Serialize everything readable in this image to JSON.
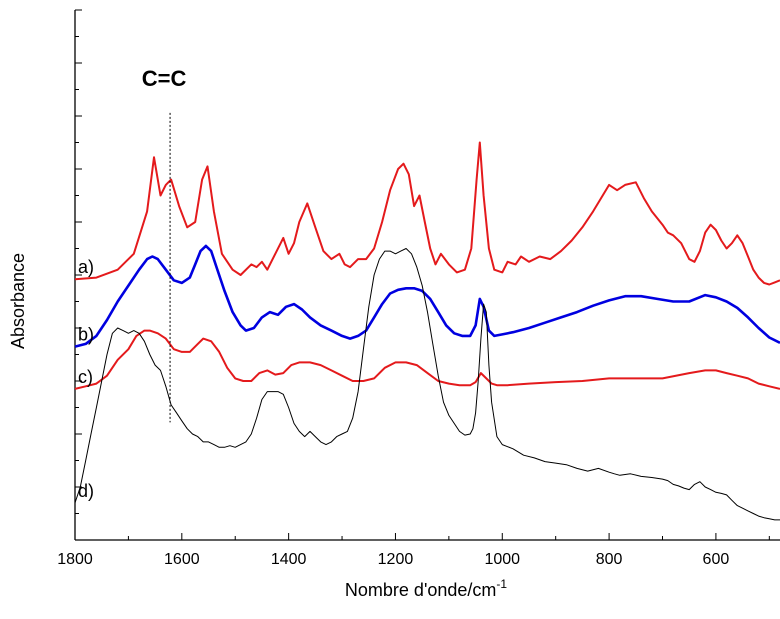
{
  "chart_data": {
    "type": "line",
    "title": "",
    "xlabel": "Nombre d'onde/cm",
    "xlabel_superscript": "-1",
    "ylabel": "Absorbance",
    "xlim": [
      1800,
      480
    ],
    "x_reversed": true,
    "ylim": [
      0,
      10
    ],
    "y_tick_labels_shown": false,
    "x_ticks": [
      1800,
      1600,
      1400,
      1200,
      1000,
      800,
      600
    ],
    "grid": false,
    "legend": "none",
    "annotations": [
      {
        "text": "C=C",
        "x": 1622,
        "y_top": 8.06,
        "y_bottom": 2.22,
        "style": "dotted-vertical-line"
      }
    ],
    "series": [
      {
        "name": "a)",
        "color": "#e41a1c",
        "x": [
          1800,
          1760,
          1720,
          1690,
          1665,
          1652,
          1640,
          1630,
          1620,
          1605,
          1590,
          1575,
          1562,
          1552,
          1540,
          1525,
          1505,
          1490,
          1470,
          1460,
          1450,
          1440,
          1425,
          1410,
          1400,
          1390,
          1380,
          1365,
          1350,
          1335,
          1320,
          1305,
          1295,
          1285,
          1270,
          1255,
          1240,
          1225,
          1210,
          1195,
          1185,
          1175,
          1165,
          1155,
          1145,
          1135,
          1125,
          1115,
          1100,
          1085,
          1070,
          1058,
          1048,
          1042,
          1035,
          1025,
          1015,
          1000,
          990,
          975,
          965,
          950,
          930,
          910,
          890,
          870,
          850,
          830,
          815,
          800,
          785,
          770,
          750,
          735,
          720,
          700,
          690,
          680,
          665,
          650,
          640,
          630,
          620,
          610,
          600,
          590,
          580,
          570,
          560,
          550,
          540,
          530,
          520,
          510,
          500,
          490,
          480
        ],
        "values": [
          4.92,
          4.95,
          5.1,
          5.4,
          6.2,
          7.22,
          6.5,
          6.7,
          6.8,
          6.3,
          5.9,
          6.0,
          6.8,
          7.05,
          6.2,
          5.4,
          5.1,
          5.0,
          5.2,
          5.15,
          5.25,
          5.1,
          5.4,
          5.7,
          5.4,
          5.6,
          6.0,
          6.35,
          5.9,
          5.45,
          5.3,
          5.4,
          5.2,
          5.15,
          5.3,
          5.3,
          5.5,
          6.0,
          6.6,
          7.0,
          7.1,
          6.9,
          6.3,
          6.5,
          6.0,
          5.5,
          5.2,
          5.4,
          5.2,
          5.05,
          5.1,
          5.5,
          6.8,
          7.5,
          6.5,
          5.5,
          5.1,
          5.05,
          5.25,
          5.2,
          5.35,
          5.25,
          5.35,
          5.3,
          5.45,
          5.65,
          5.9,
          6.2,
          6.45,
          6.7,
          6.6,
          6.7,
          6.75,
          6.45,
          6.2,
          5.95,
          5.8,
          5.75,
          5.6,
          5.3,
          5.25,
          5.45,
          5.8,
          5.95,
          5.85,
          5.65,
          5.5,
          5.6,
          5.75,
          5.6,
          5.35,
          5.1,
          4.95,
          4.85,
          4.82,
          4.86,
          4.9
        ]
      },
      {
        "name": "b)",
        "color": "#0000e0",
        "x": [
          1800,
          1780,
          1760,
          1740,
          1720,
          1700,
          1680,
          1665,
          1655,
          1645,
          1630,
          1615,
          1600,
          1585,
          1575,
          1565,
          1555,
          1545,
          1535,
          1520,
          1505,
          1490,
          1480,
          1465,
          1450,
          1435,
          1420,
          1405,
          1390,
          1375,
          1360,
          1340,
          1320,
          1300,
          1285,
          1270,
          1255,
          1240,
          1225,
          1210,
          1195,
          1180,
          1165,
          1150,
          1135,
          1120,
          1105,
          1090,
          1075,
          1060,
          1050,
          1042,
          1035,
          1025,
          1015,
          1000,
          980,
          950,
          920,
          890,
          860,
          830,
          800,
          770,
          740,
          710,
          680,
          650,
          620,
          600,
          580,
          560,
          540,
          520,
          500,
          480
        ],
        "values": [
          3.65,
          3.7,
          3.85,
          4.15,
          4.5,
          4.8,
          5.1,
          5.3,
          5.35,
          5.3,
          5.1,
          4.9,
          4.85,
          4.95,
          5.2,
          5.45,
          5.55,
          5.45,
          5.15,
          4.7,
          4.3,
          4.05,
          3.95,
          4.0,
          4.2,
          4.3,
          4.25,
          4.4,
          4.45,
          4.35,
          4.2,
          4.05,
          3.95,
          3.85,
          3.8,
          3.85,
          3.95,
          4.2,
          4.45,
          4.65,
          4.72,
          4.75,
          4.75,
          4.7,
          4.55,
          4.3,
          4.05,
          3.9,
          3.85,
          3.85,
          4.05,
          4.55,
          4.4,
          3.95,
          3.85,
          3.88,
          3.92,
          4.0,
          4.1,
          4.2,
          4.3,
          4.42,
          4.52,
          4.6,
          4.6,
          4.55,
          4.5,
          4.5,
          4.62,
          4.58,
          4.5,
          4.38,
          4.2,
          4.0,
          3.82,
          3.72
        ]
      },
      {
        "name": "c)",
        "color": "#e41a1c",
        "x": [
          1800,
          1780,
          1760,
          1740,
          1720,
          1700,
          1685,
          1670,
          1660,
          1645,
          1630,
          1615,
          1600,
          1585,
          1570,
          1560,
          1545,
          1530,
          1515,
          1500,
          1485,
          1470,
          1455,
          1440,
          1425,
          1410,
          1395,
          1380,
          1360,
          1340,
          1320,
          1300,
          1280,
          1260,
          1240,
          1220,
          1200,
          1180,
          1160,
          1140,
          1120,
          1100,
          1080,
          1060,
          1050,
          1040,
          1030,
          1020,
          1010,
          990,
          950,
          900,
          850,
          800,
          750,
          700,
          650,
          620,
          600,
          580,
          560,
          540,
          520,
          500,
          480
        ],
        "values": [
          2.85,
          2.9,
          2.95,
          3.1,
          3.4,
          3.6,
          3.85,
          3.95,
          3.95,
          3.9,
          3.8,
          3.6,
          3.55,
          3.55,
          3.7,
          3.8,
          3.75,
          3.55,
          3.25,
          3.05,
          3.0,
          3.0,
          3.15,
          3.2,
          3.12,
          3.15,
          3.3,
          3.35,
          3.35,
          3.3,
          3.2,
          3.1,
          3.0,
          3.0,
          3.05,
          3.25,
          3.35,
          3.35,
          3.3,
          3.15,
          3.0,
          2.95,
          2.92,
          2.92,
          2.98,
          3.15,
          3.05,
          2.95,
          2.92,
          2.92,
          2.95,
          2.98,
          3.0,
          3.05,
          3.05,
          3.05,
          3.15,
          3.2,
          3.2,
          3.15,
          3.1,
          3.05,
          2.95,
          2.9,
          2.85
        ]
      },
      {
        "name": "d)",
        "color": "#000000",
        "x": [
          1800,
          1790,
          1780,
          1770,
          1760,
          1750,
          1740,
          1730,
          1720,
          1710,
          1700,
          1690,
          1680,
          1670,
          1660,
          1650,
          1640,
          1630,
          1620,
          1610,
          1600,
          1590,
          1580,
          1570,
          1560,
          1550,
          1540,
          1530,
          1520,
          1510,
          1500,
          1490,
          1480,
          1470,
          1460,
          1450,
          1440,
          1430,
          1420,
          1410,
          1400,
          1390,
          1380,
          1370,
          1360,
          1350,
          1340,
          1330,
          1320,
          1310,
          1300,
          1290,
          1280,
          1270,
          1260,
          1250,
          1240,
          1230,
          1220,
          1210,
          1200,
          1190,
          1180,
          1170,
          1160,
          1150,
          1140,
          1130,
          1120,
          1110,
          1100,
          1090,
          1080,
          1070,
          1060,
          1055,
          1050,
          1045,
          1040,
          1035,
          1030,
          1025,
          1020,
          1010,
          1000,
          980,
          960,
          940,
          920,
          900,
          880,
          860,
          840,
          820,
          800,
          790,
          780,
          760,
          740,
          720,
          700,
          690,
          680,
          670,
          660,
          650,
          640,
          630,
          620,
          610,
          600,
          590,
          580,
          570,
          560,
          550,
          540,
          530,
          520,
          510,
          500,
          490,
          480
        ],
        "values": [
          0.7,
          1.0,
          1.5,
          2.0,
          2.5,
          3.0,
          3.5,
          3.9,
          4.0,
          3.95,
          3.9,
          3.95,
          3.9,
          3.75,
          3.5,
          3.3,
          3.2,
          2.9,
          2.55,
          2.4,
          2.25,
          2.1,
          2.0,
          1.95,
          1.85,
          1.85,
          1.8,
          1.75,
          1.75,
          1.78,
          1.75,
          1.8,
          1.85,
          2.0,
          2.3,
          2.65,
          2.8,
          2.8,
          2.8,
          2.75,
          2.5,
          2.2,
          2.05,
          1.95,
          2.05,
          1.95,
          1.85,
          1.8,
          1.85,
          1.95,
          2.0,
          2.05,
          2.3,
          2.8,
          3.6,
          4.4,
          5.0,
          5.3,
          5.45,
          5.45,
          5.4,
          5.45,
          5.5,
          5.4,
          5.15,
          4.8,
          4.3,
          3.7,
          3.1,
          2.6,
          2.35,
          2.2,
          2.05,
          1.98,
          2.0,
          2.1,
          2.4,
          3.0,
          3.8,
          4.45,
          4.3,
          3.3,
          2.6,
          1.95,
          1.8,
          1.72,
          1.6,
          1.55,
          1.48,
          1.45,
          1.42,
          1.35,
          1.3,
          1.35,
          1.28,
          1.25,
          1.22,
          1.25,
          1.2,
          1.18,
          1.15,
          1.12,
          1.05,
          1.02,
          0.98,
          0.95,
          1.05,
          1.1,
          1.0,
          0.95,
          0.9,
          0.88,
          0.85,
          0.75,
          0.65,
          0.6,
          0.55,
          0.5,
          0.45,
          0.42,
          0.4,
          0.38,
          0.38
        ]
      }
    ]
  }
}
